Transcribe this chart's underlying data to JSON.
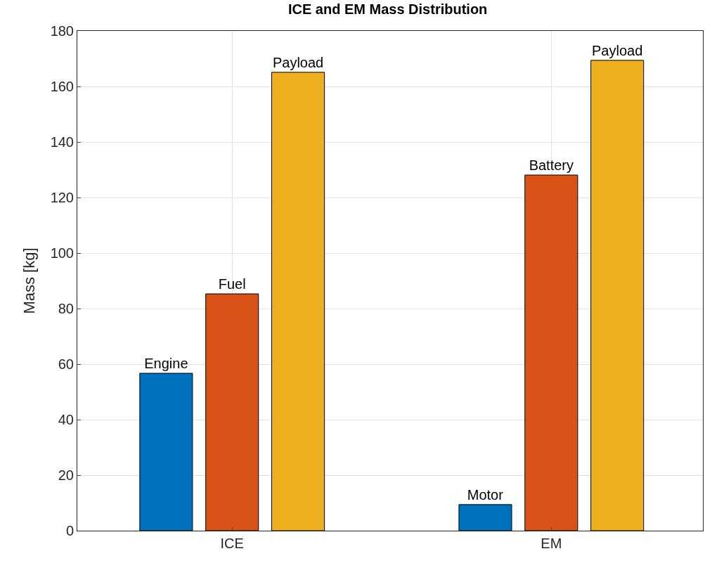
{
  "chart_data": {
    "type": "bar",
    "title": "ICE and EM Mass Distribution",
    "ylabel": "Mass [kg]",
    "categories": [
      "ICE",
      "EM"
    ],
    "series": [
      {
        "color": "#0072bd",
        "values": [
          56.7,
          9.4
        ],
        "value_labels": [
          "Engine",
          "Motor"
        ]
      },
      {
        "color": "#d95319",
        "values": [
          85.3,
          128.1
        ],
        "value_labels": [
          "Fuel",
          "Battery"
        ]
      },
      {
        "color": "#edb120",
        "values": [
          165.1,
          169.4
        ],
        "value_labels": [
          "Payload",
          "Payload"
        ]
      }
    ],
    "ylim": [
      0,
      180
    ],
    "yticks": [
      0,
      20,
      40,
      60,
      80,
      100,
      120,
      140,
      160,
      180
    ],
    "grid": true
  }
}
